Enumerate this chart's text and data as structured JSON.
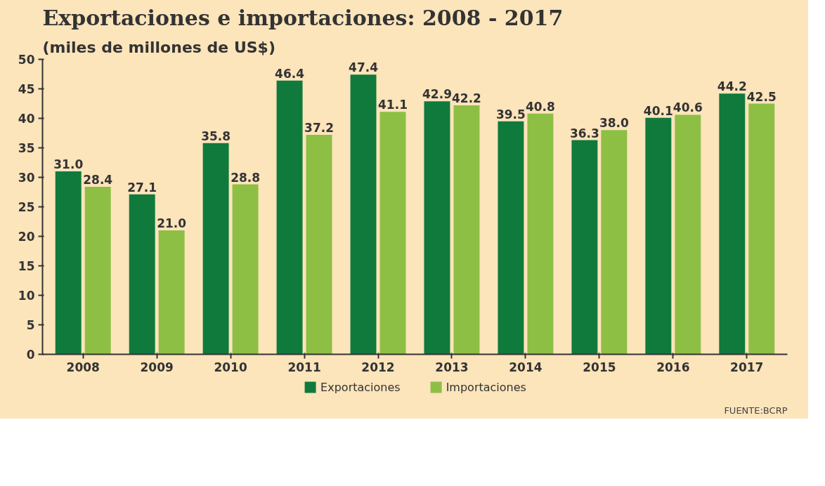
{
  "chart_data": {
    "type": "bar",
    "title": "Exportaciones e importaciones: 2008 - 2017",
    "subtitle": "(miles de millones de US$)",
    "categories": [
      "2008",
      "2009",
      "2010",
      "2011",
      "2012",
      "2013",
      "2014",
      "2015",
      "2016",
      "2017"
    ],
    "series": [
      {
        "name": "Exportaciones",
        "color": "#0f7a3c",
        "values": [
          31.0,
          27.1,
          35.8,
          46.4,
          47.4,
          42.9,
          39.5,
          36.3,
          40.1,
          44.2
        ],
        "value_labels": [
          "31.0",
          "27.1",
          "35.8",
          "46.4",
          "47.4",
          "42.9",
          "39.5",
          "36.3",
          "40.1",
          "44.2"
        ]
      },
      {
        "name": "Importaciones",
        "color": "#8dbf45",
        "values": [
          28.4,
          21.0,
          28.8,
          37.2,
          41.1,
          42.2,
          40.8,
          38.0,
          40.6,
          42.5
        ],
        "value_labels": [
          "28.4",
          "21.0",
          "28.8",
          "37.2",
          "41.1",
          "42.2",
          "40.8",
          "38.0",
          "40.6",
          "42.5"
        ]
      }
    ],
    "ylim": [
      0,
      50
    ],
    "yticks": [
      0,
      5,
      10,
      15,
      20,
      25,
      30,
      35,
      40,
      45,
      50
    ],
    "legend": "bottom",
    "annotations": [
      "FUENTE:BCRP"
    ]
  }
}
